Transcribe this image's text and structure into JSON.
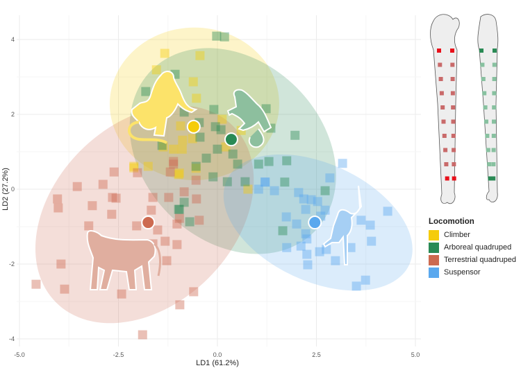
{
  "chart_data": {
    "type": "scatter",
    "title": "",
    "xlabel": "LD1 (61.2%)",
    "ylabel": "LD2 (27.2%)",
    "xlim": [
      -5.0,
      5.3
    ],
    "ylim": [
      -4.2,
      4.3
    ],
    "xticks": [
      -5.0,
      -2.5,
      0.0,
      2.5,
      5.0
    ],
    "xtick_labels": [
      "-5.0",
      "-2.5",
      "0.0",
      "2.5",
      "5.0"
    ],
    "yticks": [
      -4,
      -2,
      0,
      2,
      4
    ],
    "ytick_labels": [
      "-4",
      "-2",
      "0",
      "2",
      "4"
    ],
    "grid": true,
    "legend": {
      "title": "Locomotion",
      "placement": "right"
    },
    "series": [
      {
        "name": "Climber",
        "color": "#F5CC0A",
        "mean": [
          -0.6,
          1.67
        ],
        "ellipse": {
          "cx": -0.58,
          "cy": 2.28,
          "rx": 2.14,
          "ry": 2.04,
          "angle": 0
        },
        "points": [
          [
            -1.33,
            3.63
          ],
          [
            -0.44,
            3.57
          ],
          [
            -1.54,
            3.19
          ],
          [
            -0.61,
            2.87
          ],
          [
            -0.53,
            2.43
          ],
          [
            -0.93,
            1.69
          ],
          [
            -0.88,
            1.31
          ],
          [
            -0.63,
            1.35
          ],
          [
            -1.11,
            1.07
          ],
          [
            -0.89,
            1.07
          ],
          [
            -2.11,
            0.61
          ],
          [
            -1.75,
            0.61
          ],
          [
            -0.96,
            0.43
          ],
          [
            -0.54,
            0.56
          ],
          [
            0.21,
            1.13
          ],
          [
            0.6,
            1.57
          ],
          [
            0.77,
            0.0
          ],
          [
            -1.37,
            1.13
          ],
          [
            0.12,
            1.87
          ],
          [
            -2.11,
            0.57
          ],
          [
            -0.98,
            0.39
          ]
        ]
      },
      {
        "name": "Arboreal quadruped",
        "color": "#2A8A55",
        "mean": [
          0.35,
          1.33
        ],
        "ellipse": {
          "cx": 0.39,
          "cy": 1.02,
          "rx": 2.9,
          "ry": 2.4,
          "angle": 45
        },
        "points": [
          [
            -0.02,
            4.09
          ],
          [
            0.18,
            4.07
          ],
          [
            -1.07,
            3.07
          ],
          [
            -1.81,
            2.61
          ],
          [
            -0.09,
            2.13
          ],
          [
            -0.84,
            2.06
          ],
          [
            -0.46,
            1.78
          ],
          [
            -0.05,
            1.67
          ],
          [
            0.09,
            1.59
          ],
          [
            -0.44,
            1.39
          ],
          [
            -1.4,
            1.17
          ],
          [
            0.0,
            1.07
          ],
          [
            0.39,
            0.94
          ],
          [
            -0.28,
            0.83
          ],
          [
            0.51,
            0.67
          ],
          [
            1.04,
            0.67
          ],
          [
            1.3,
            0.74
          ],
          [
            1.75,
            0.76
          ],
          [
            1.96,
            1.44
          ],
          [
            -0.11,
            0.33
          ],
          [
            0.25,
            0.2
          ],
          [
            0.7,
            0.2
          ],
          [
            -0.54,
            0.61
          ],
          [
            1.7,
            0.19
          ],
          [
            -0.96,
            -0.54
          ],
          [
            1.23,
            2.15
          ],
          [
            1.35,
            1.63
          ],
          [
            0.6,
            2.22
          ],
          [
            2.72,
            -0.04
          ],
          [
            1.65,
            -1.11
          ],
          [
            -0.84,
            -0.35
          ],
          [
            -0.98,
            -0.54
          ],
          [
            -0.7,
            -0.87
          ]
        ]
      },
      {
        "name": "Terrestrial quadruped",
        "color": "#CD6A50",
        "mean": [
          -1.75,
          -0.89
        ],
        "ellipse": {
          "cx": -1.84,
          "cy": -0.67,
          "rx": 3.16,
          "ry": 2.41,
          "angle": -45
        },
        "points": [
          [
            -2.61,
            0.46
          ],
          [
            -2.02,
            0.44
          ],
          [
            -3.54,
            0.07
          ],
          [
            -2.89,
            0.13
          ],
          [
            -4.04,
            -0.26
          ],
          [
            -4.02,
            -0.5
          ],
          [
            -3.16,
            -0.44
          ],
          [
            -2.65,
            -0.22
          ],
          [
            -2.56,
            -0.24
          ],
          [
            -2.67,
            -0.67
          ],
          [
            -3.25,
            -0.98
          ],
          [
            -2.04,
            -0.98
          ],
          [
            -1.63,
            -0.22
          ],
          [
            -1.67,
            -0.56
          ],
          [
            -1.51,
            -1.09
          ],
          [
            -1.32,
            -1.39
          ],
          [
            -1.02,
            -1.48
          ],
          [
            -1.63,
            -1.46
          ],
          [
            -1.28,
            -1.91
          ],
          [
            -3.95,
            -2.0
          ],
          [
            -4.58,
            -2.54
          ],
          [
            -3.86,
            -2.67
          ],
          [
            -2.42,
            -2.8
          ],
          [
            -0.6,
            -2.74
          ],
          [
            -0.95,
            -3.09
          ],
          [
            -1.89,
            -3.89
          ],
          [
            -1.11,
            0.67
          ],
          [
            -1.23,
            -0.22
          ],
          [
            -0.84,
            -0.07
          ],
          [
            -0.53,
            -0.26
          ],
          [
            -1.02,
            -0.93
          ],
          [
            -0.46,
            -0.83
          ],
          [
            -1.11,
            0.74
          ],
          [
            -1.19,
            0.46
          ],
          [
            -0.54,
            0.24
          ],
          [
            -0.96,
            -0.78
          ]
        ]
      },
      {
        "name": "Suspensor",
        "color": "#5AA8EE",
        "mean": [
          2.46,
          -0.89
        ],
        "ellipse": {
          "cx": 2.54,
          "cy": -0.89,
          "rx": 2.54,
          "ry": 1.57,
          "angle": 25
        },
        "points": [
          [
            3.16,
            0.69
          ],
          [
            2.84,
            0.3
          ],
          [
            1.04,
            0.0
          ],
          [
            1.44,
            -0.04
          ],
          [
            1.21,
            0.19
          ],
          [
            2.05,
            -0.09
          ],
          [
            2.18,
            -0.26
          ],
          [
            2.37,
            -0.28
          ],
          [
            2.53,
            -0.33
          ],
          [
            2.23,
            -0.54
          ],
          [
            2.72,
            -0.56
          ],
          [
            1.74,
            -0.74
          ],
          [
            2.0,
            -0.93
          ],
          [
            2.61,
            -0.72
          ],
          [
            4.3,
            -0.59
          ],
          [
            3.63,
            -0.83
          ],
          [
            3.86,
            -0.96
          ],
          [
            2.23,
            -1.19
          ],
          [
            2.26,
            -1.33
          ],
          [
            1.75,
            -1.56
          ],
          [
            2.11,
            -1.52
          ],
          [
            2.58,
            -1.67
          ],
          [
            2.75,
            -1.61
          ],
          [
            3.37,
            -1.56
          ],
          [
            3.89,
            -1.39
          ],
          [
            2.26,
            -1.74
          ],
          [
            2.28,
            -2.02
          ],
          [
            2.98,
            -1.91
          ],
          [
            3.74,
            -2.43
          ],
          [
            3.51,
            -2.59
          ],
          [
            1.2,
            0.19
          ]
        ]
      }
    ]
  }
}
